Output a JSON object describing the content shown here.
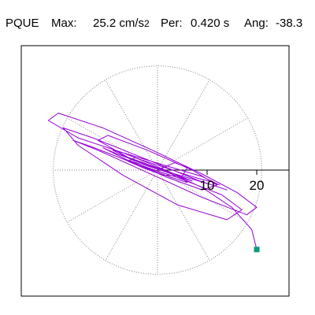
{
  "header": {
    "station": "PQUE",
    "max_label": "Max:",
    "max_value": "25.2 cm/s",
    "max_exponent": "2",
    "period_label": "Per:",
    "period_value": "0.420 s",
    "angle_label": "Ang:",
    "angle_value": "-38.3"
  },
  "colors": {
    "trace": "#9400d3",
    "end_marker": "#0a9a7a",
    "grid": "#808080",
    "axis": "#000000",
    "frame": "#000000"
  },
  "chart_data": {
    "type": "scatter",
    "title": "PQUE",
    "description_kind": "polar particle-motion plot",
    "radial_ticks": [
      10,
      20
    ],
    "radial_tick_labels": [
      "10",
      "20"
    ],
    "angular_grid_step_deg": 30,
    "rmax": 21,
    "grid": true,
    "end_point": {
      "x": 20.0,
      "y": -16.0
    },
    "series": [
      {
        "values": [
          [
            0,
            0
          ],
          [
            3.5,
            1.5
          ],
          [
            6,
            0.5
          ],
          [
            5,
            -1.2
          ],
          [
            1,
            -1
          ],
          [
            -3,
            0.5
          ],
          [
            -6,
            1.8
          ],
          [
            -4.5,
            2.5
          ],
          [
            0,
            1
          ],
          [
            4.5,
            -0.5
          ],
          [
            8,
            -1.6
          ],
          [
            11,
            -2.4
          ],
          [
            12.5,
            -3
          ],
          [
            9,
            -1.3
          ],
          [
            2,
            0.8
          ],
          [
            -7,
            3.5
          ],
          [
            -16,
            6.5
          ],
          [
            -22,
            10
          ],
          [
            -20,
            11.5
          ],
          [
            -11,
            8.5
          ],
          [
            -1,
            4
          ],
          [
            9,
            -0.8
          ],
          [
            16,
            -4.5
          ],
          [
            20,
            -7.5
          ],
          [
            18,
            -9
          ],
          [
            9,
            -5.5
          ],
          [
            -2,
            -0.5
          ],
          [
            -12,
            4
          ],
          [
            -17,
            6
          ],
          [
            -13,
            4.6
          ],
          [
            -5,
            1.5
          ],
          [
            4,
            -1.5
          ],
          [
            13,
            -5
          ],
          [
            17,
            -8
          ],
          [
            14,
            -10
          ],
          [
            4,
            -7
          ],
          [
            -7,
            -1
          ],
          [
            -16,
            5
          ],
          [
            -19,
            8.5
          ],
          [
            -13,
            6.5
          ],
          [
            -3,
            2.5
          ],
          [
            8,
            -2
          ],
          [
            14,
            -4
          ],
          [
            11,
            -3
          ],
          [
            3,
            -0.6
          ],
          [
            -6,
            2.6
          ],
          [
            -12,
            6
          ],
          [
            -10,
            7
          ],
          [
            -2,
            4
          ],
          [
            7,
            0
          ],
          [
            12,
            -3
          ],
          [
            9,
            -4
          ],
          [
            2,
            -1.5
          ],
          [
            -6,
            2
          ],
          [
            -11,
            4.5
          ],
          [
            -8,
            3.2
          ],
          [
            -2,
            1
          ],
          [
            4,
            -1.2
          ],
          [
            7,
            -2.2
          ],
          [
            4,
            -1
          ],
          [
            -2,
            1.5
          ],
          [
            -7,
            3.5
          ],
          [
            -9,
            4
          ],
          [
            -5,
            2
          ],
          [
            1,
            0
          ],
          [
            5,
            -1.6
          ],
          [
            6,
            -2.5
          ],
          [
            2,
            -1.2
          ],
          [
            -3,
            0.8
          ],
          [
            -6,
            2
          ],
          [
            -4,
            1.4
          ],
          [
            0,
            0.2
          ],
          [
            3,
            -0.8
          ],
          [
            9,
            -3.5
          ],
          [
            15,
            -7.5
          ],
          [
            19,
            -12
          ],
          [
            20,
            -16
          ]
        ]
      }
    ]
  }
}
